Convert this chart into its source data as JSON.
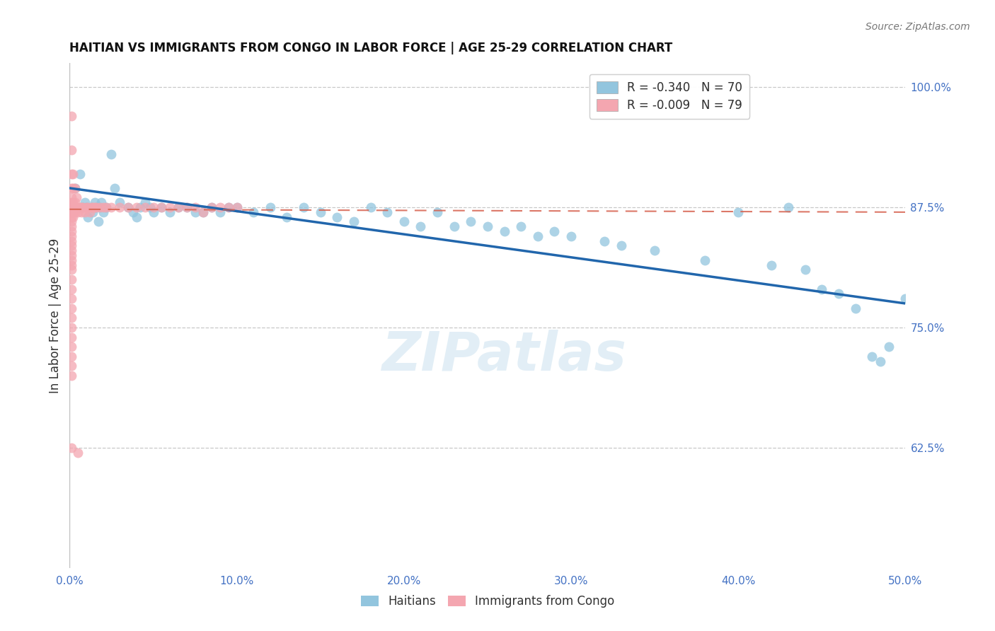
{
  "title": "HAITIAN VS IMMIGRANTS FROM CONGO IN LABOR FORCE | AGE 25-29 CORRELATION CHART",
  "source": "Source: ZipAtlas.com",
  "ylabel": "In Labor Force | Age 25-29",
  "xlim": [
    0.0,
    0.5
  ],
  "ylim": [
    0.5,
    1.025
  ],
  "xticks": [
    0.0,
    0.1,
    0.2,
    0.3,
    0.4,
    0.5
  ],
  "xticklabels": [
    "0.0%",
    "10.0%",
    "20.0%",
    "30.0%",
    "40.0%",
    "50.0%"
  ],
  "yticks_right": [
    0.625,
    0.75,
    0.875,
    1.0
  ],
  "yticklabels_right": [
    "62.5%",
    "75.0%",
    "87.5%",
    "100.0%"
  ],
  "blue_R": "-0.340",
  "blue_N": "70",
  "pink_R": "-0.009",
  "pink_N": "79",
  "blue_color": "#92c5de",
  "pink_color": "#f4a6b0",
  "blue_line_color": "#2166ac",
  "pink_line_color": "#d6604d",
  "legend_label_blue": "Haitians",
  "legend_label_pink": "Immigrants from Congo",
  "watermark": "ZIPatlas",
  "blue_line_x0": 0.0,
  "blue_line_x1": 0.5,
  "blue_line_y0": 0.895,
  "blue_line_y1": 0.775,
  "pink_line_x0": 0.0,
  "pink_line_x1": 0.5,
  "pink_line_y0": 0.873,
  "pink_line_y1": 0.87,
  "blue_points": [
    [
      0.003,
      0.895
    ],
    [
      0.006,
      0.91
    ],
    [
      0.008,
      0.875
    ],
    [
      0.009,
      0.88
    ],
    [
      0.01,
      0.875
    ],
    [
      0.011,
      0.865
    ],
    [
      0.013,
      0.875
    ],
    [
      0.014,
      0.87
    ],
    [
      0.015,
      0.88
    ],
    [
      0.016,
      0.875
    ],
    [
      0.017,
      0.86
    ],
    [
      0.018,
      0.875
    ],
    [
      0.019,
      0.88
    ],
    [
      0.02,
      0.87
    ],
    [
      0.022,
      0.875
    ],
    [
      0.025,
      0.93
    ],
    [
      0.027,
      0.895
    ],
    [
      0.03,
      0.88
    ],
    [
      0.035,
      0.875
    ],
    [
      0.038,
      0.87
    ],
    [
      0.04,
      0.865
    ],
    [
      0.042,
      0.875
    ],
    [
      0.045,
      0.88
    ],
    [
      0.048,
      0.875
    ],
    [
      0.05,
      0.87
    ],
    [
      0.055,
      0.875
    ],
    [
      0.06,
      0.87
    ],
    [
      0.065,
      0.875
    ],
    [
      0.07,
      0.875
    ],
    [
      0.075,
      0.87
    ],
    [
      0.08,
      0.87
    ],
    [
      0.085,
      0.875
    ],
    [
      0.09,
      0.87
    ],
    [
      0.095,
      0.875
    ],
    [
      0.1,
      0.875
    ],
    [
      0.11,
      0.87
    ],
    [
      0.12,
      0.875
    ],
    [
      0.13,
      0.865
    ],
    [
      0.14,
      0.875
    ],
    [
      0.15,
      0.87
    ],
    [
      0.16,
      0.865
    ],
    [
      0.17,
      0.86
    ],
    [
      0.18,
      0.875
    ],
    [
      0.19,
      0.87
    ],
    [
      0.2,
      0.86
    ],
    [
      0.21,
      0.855
    ],
    [
      0.22,
      0.87
    ],
    [
      0.23,
      0.855
    ],
    [
      0.24,
      0.86
    ],
    [
      0.25,
      0.855
    ],
    [
      0.26,
      0.85
    ],
    [
      0.27,
      0.855
    ],
    [
      0.28,
      0.845
    ],
    [
      0.29,
      0.85
    ],
    [
      0.3,
      0.845
    ],
    [
      0.32,
      0.84
    ],
    [
      0.33,
      0.835
    ],
    [
      0.35,
      0.83
    ],
    [
      0.38,
      0.82
    ],
    [
      0.4,
      0.87
    ],
    [
      0.42,
      0.815
    ],
    [
      0.43,
      0.875
    ],
    [
      0.44,
      0.81
    ],
    [
      0.45,
      0.79
    ],
    [
      0.46,
      0.785
    ],
    [
      0.47,
      0.77
    ],
    [
      0.48,
      0.72
    ],
    [
      0.485,
      0.715
    ],
    [
      0.49,
      0.73
    ],
    [
      0.5,
      0.78
    ]
  ],
  "pink_points": [
    [
      0.001,
      0.97
    ],
    [
      0.001,
      0.935
    ],
    [
      0.001,
      0.91
    ],
    [
      0.001,
      0.895
    ],
    [
      0.001,
      0.885
    ],
    [
      0.001,
      0.88
    ],
    [
      0.001,
      0.875
    ],
    [
      0.001,
      0.875
    ],
    [
      0.001,
      0.87
    ],
    [
      0.001,
      0.865
    ],
    [
      0.001,
      0.86
    ],
    [
      0.001,
      0.855
    ],
    [
      0.001,
      0.85
    ],
    [
      0.001,
      0.845
    ],
    [
      0.001,
      0.84
    ],
    [
      0.001,
      0.835
    ],
    [
      0.001,
      0.83
    ],
    [
      0.001,
      0.825
    ],
    [
      0.001,
      0.82
    ],
    [
      0.001,
      0.815
    ],
    [
      0.001,
      0.81
    ],
    [
      0.001,
      0.8
    ],
    [
      0.001,
      0.79
    ],
    [
      0.001,
      0.78
    ],
    [
      0.001,
      0.77
    ],
    [
      0.001,
      0.76
    ],
    [
      0.001,
      0.75
    ],
    [
      0.001,
      0.74
    ],
    [
      0.001,
      0.73
    ],
    [
      0.001,
      0.72
    ],
    [
      0.001,
      0.71
    ],
    [
      0.001,
      0.7
    ],
    [
      0.002,
      0.91
    ],
    [
      0.002,
      0.895
    ],
    [
      0.002,
      0.88
    ],
    [
      0.002,
      0.875
    ],
    [
      0.002,
      0.87
    ],
    [
      0.002,
      0.865
    ],
    [
      0.003,
      0.895
    ],
    [
      0.003,
      0.88
    ],
    [
      0.003,
      0.875
    ],
    [
      0.003,
      0.87
    ],
    [
      0.004,
      0.885
    ],
    [
      0.004,
      0.875
    ],
    [
      0.005,
      0.875
    ],
    [
      0.005,
      0.87
    ],
    [
      0.006,
      0.875
    ],
    [
      0.007,
      0.875
    ],
    [
      0.007,
      0.87
    ],
    [
      0.008,
      0.875
    ],
    [
      0.009,
      0.87
    ],
    [
      0.01,
      0.875
    ],
    [
      0.011,
      0.875
    ],
    [
      0.012,
      0.87
    ],
    [
      0.013,
      0.875
    ],
    [
      0.014,
      0.875
    ],
    [
      0.015,
      0.875
    ],
    [
      0.016,
      0.875
    ],
    [
      0.018,
      0.875
    ],
    [
      0.02,
      0.875
    ],
    [
      0.022,
      0.875
    ],
    [
      0.025,
      0.875
    ],
    [
      0.03,
      0.875
    ],
    [
      0.035,
      0.875
    ],
    [
      0.04,
      0.875
    ],
    [
      0.045,
      0.875
    ],
    [
      0.05,
      0.875
    ],
    [
      0.055,
      0.875
    ],
    [
      0.06,
      0.875
    ],
    [
      0.065,
      0.875
    ],
    [
      0.07,
      0.875
    ],
    [
      0.075,
      0.875
    ],
    [
      0.08,
      0.87
    ],
    [
      0.085,
      0.875
    ],
    [
      0.09,
      0.875
    ],
    [
      0.095,
      0.875
    ],
    [
      0.1,
      0.875
    ],
    [
      0.005,
      0.62
    ],
    [
      0.001,
      0.625
    ]
  ]
}
